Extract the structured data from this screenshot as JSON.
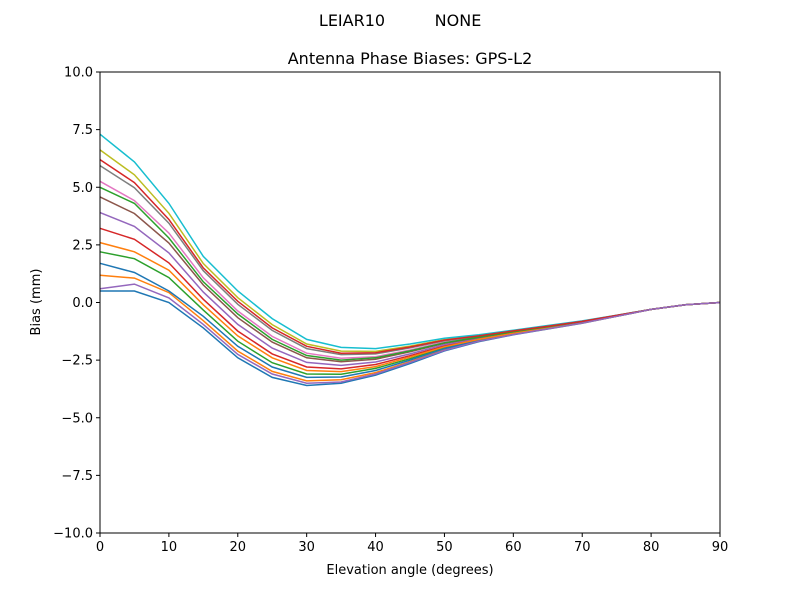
{
  "chart_data": {
    "type": "line",
    "suptitle_left": "LEIAR10",
    "suptitle_right": "NONE",
    "title": "Antenna Phase Biases: GPS-L2",
    "xlabel": "Elevation angle (degrees)",
    "ylabel": "Bias (mm)",
    "xlim": [
      0,
      90
    ],
    "ylim": [
      -10,
      10
    ],
    "xticks": [
      0,
      10,
      20,
      30,
      40,
      50,
      60,
      70,
      80,
      90
    ],
    "yticks": [
      -10.0,
      -7.5,
      -5.0,
      -2.5,
      0.0,
      2.5,
      5.0,
      7.5,
      10.0
    ],
    "ytick_labels": [
      "−10.0",
      "−7.5",
      "−5.0",
      "−2.5",
      "0.0",
      "2.5",
      "5.0",
      "7.5",
      "10.0"
    ],
    "grid": false,
    "legend": "none",
    "colors": [
      "#1f77b4",
      "#ff7f0e",
      "#2ca02c",
      "#d62728",
      "#9467bd",
      "#8c564b",
      "#e377c2",
      "#7f7f7f",
      "#bcbd22",
      "#17becf"
    ],
    "x": [
      0,
      5,
      10,
      15,
      20,
      25,
      30,
      35,
      40,
      45,
      50,
      55,
      60,
      65,
      70,
      75,
      80,
      85,
      90
    ],
    "series": [
      {
        "values": [
          0.5,
          0.5,
          0,
          -1.1,
          -2.4,
          -3.25,
          -3.6,
          -3.5,
          -3.15,
          -2.65,
          -2.1,
          -1.7,
          -1.4,
          -1.15,
          -0.9,
          -0.6,
          -0.3,
          -0.1,
          0
        ]
      },
      {
        "values": [
          1.18,
          1.06,
          0.43,
          -0.79,
          -2.11,
          -2.99,
          -3.4,
          -3.35,
          -3.04,
          -2.57,
          -2.05,
          -1.67,
          -1.38,
          -1.14,
          -0.89,
          -0.6,
          -0.3,
          -0.1,
          0
        ]
      },
      {
        "values": [
          2.2,
          1.9,
          1.08,
          -0.33,
          -1.68,
          -2.61,
          -3.1,
          -3.11,
          -2.86,
          -2.44,
          -1.96,
          -1.63,
          -1.35,
          -1.11,
          -0.88,
          -0.59,
          -0.3,
          -0.1,
          0
        ]
      },
      {
        "values": [
          3.22,
          2.74,
          1.72,
          0.14,
          -1.24,
          -2.23,
          -2.8,
          -2.88,
          -2.69,
          -2.31,
          -1.88,
          -1.58,
          -1.32,
          -1.09,
          -0.86,
          -0.58,
          -0.3,
          -0.1,
          0
        ]
      },
      {
        "values": [
          3.9,
          3.3,
          2.15,
          0.45,
          -0.95,
          -1.98,
          -2.6,
          -2.73,
          -2.58,
          -2.23,
          -1.83,
          -1.55,
          -1.3,
          -1.08,
          -0.85,
          -0.58,
          -0.3,
          -0.1,
          0
        ]
      },
      {
        "values": [
          4.58,
          3.86,
          2.58,
          0.76,
          -0.66,
          -1.72,
          -2.4,
          -2.57,
          -2.46,
          -2.14,
          -1.77,
          -1.52,
          -1.28,
          -1.06,
          -0.84,
          -0.57,
          -0.3,
          -0.1,
          0
        ]
      },
      {
        "values": [
          5.26,
          4.42,
          3.01,
          1.07,
          -0.37,
          -1.47,
          -2.2,
          -2.42,
          -2.35,
          -2.06,
          -1.72,
          -1.49,
          -1.26,
          -1.05,
          -0.83,
          -0.57,
          -0.3,
          -0.1,
          0
        ]
      },
      {
        "values": [
          5.94,
          4.98,
          3.44,
          1.38,
          -0.08,
          -1.21,
          -2.0,
          -2.26,
          -2.23,
          -1.97,
          -1.66,
          -1.46,
          -1.24,
          -1.03,
          -0.82,
          -0.56,
          -0.3,
          -0.1,
          0
        ]
      },
      {
        "values": [
          6.62,
          5.54,
          3.87,
          1.69,
          0.21,
          -0.96,
          -1.8,
          -2.11,
          -2.12,
          -1.89,
          -1.61,
          -1.43,
          -1.22,
          -1.02,
          -0.81,
          -0.56,
          -0.3,
          -0.1,
          0
        ]
      },
      {
        "values": [
          7.3,
          6.1,
          4.3,
          2.0,
          0.5,
          -0.7,
          -1.6,
          -1.95,
          -2.0,
          -1.8,
          -1.55,
          -1.4,
          -1.2,
          -1.0,
          -0.8,
          -0.55,
          -0.3,
          -0.1,
          0
        ]
      },
      {
        "values": [
          1.7,
          1.3,
          0.5,
          -0.6,
          -1.9,
          -2.8,
          -3.25,
          -3.23,
          -2.95,
          -2.5,
          -2.0,
          -1.65,
          -1.36,
          -1.12,
          -0.88,
          -0.59,
          -0.3,
          -0.1,
          0
        ]
      },
      {
        "values": [
          2.6,
          2.2,
          1.4,
          -0.1,
          -1.45,
          -2.4,
          -2.95,
          -3.0,
          -2.78,
          -2.37,
          -1.92,
          -1.6,
          -1.33,
          -1.1,
          -0.87,
          -0.58,
          -0.3,
          -0.1,
          0
        ]
      },
      {
        "values": [
          5.0,
          4.3,
          2.8,
          0.9,
          -0.5,
          -1.6,
          -2.3,
          -2.5,
          -2.4,
          -2.1,
          -1.75,
          -1.5,
          -1.27,
          -1.05,
          -0.83,
          -0.57,
          -0.3,
          -0.1,
          0
        ]
      },
      {
        "values": [
          6.2,
          5.2,
          3.6,
          1.5,
          0.05,
          -1.1,
          -1.9,
          -2.2,
          -2.18,
          -1.93,
          -1.63,
          -1.45,
          -1.23,
          -1.03,
          -0.82,
          -0.56,
          -0.3,
          -0.1,
          0
        ]
      },
      {
        "values": [
          0.6,
          0.8,
          0.2,
          -0.95,
          -2.25,
          -3.1,
          -3.5,
          -3.45,
          -3.1,
          -2.6,
          -2.08,
          -1.68,
          -1.39,
          -1.14,
          -0.89,
          -0.6,
          -0.3,
          -0.1,
          0
        ]
      }
    ]
  }
}
